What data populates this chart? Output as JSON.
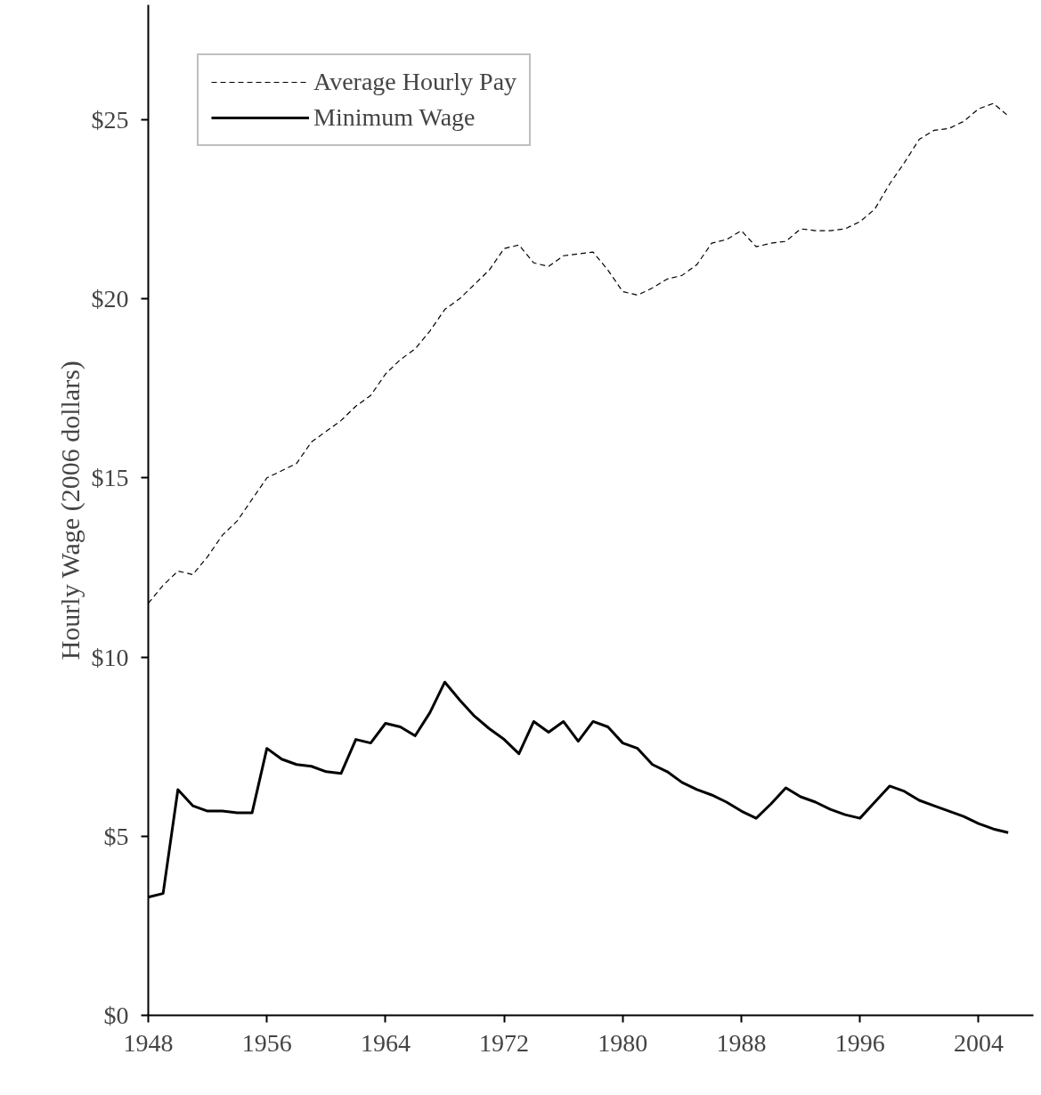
{
  "chart_data": {
    "type": "line",
    "ylabel": "Hourly Wage (2006 dollars)",
    "x": [
      1948,
      1949,
      1950,
      1951,
      1952,
      1953,
      1954,
      1955,
      1956,
      1957,
      1958,
      1959,
      1960,
      1961,
      1962,
      1963,
      1964,
      1965,
      1966,
      1967,
      1968,
      1969,
      1970,
      1971,
      1972,
      1973,
      1974,
      1975,
      1976,
      1977,
      1978,
      1979,
      1980,
      1981,
      1982,
      1983,
      1984,
      1985,
      1986,
      1987,
      1988,
      1989,
      1990,
      1991,
      1992,
      1993,
      1994,
      1995,
      1996,
      1997,
      1998,
      1999,
      2000,
      2001,
      2002,
      2003,
      2004,
      2005,
      2006
    ],
    "series": [
      {
        "name": "Average Hourly Pay",
        "color": "#000000",
        "line_style": "dashed",
        "values": [
          11.5,
          12.0,
          12.4,
          12.3,
          12.8,
          13.4,
          13.8,
          14.4,
          15.0,
          15.2,
          15.4,
          16.0,
          16.3,
          16.6,
          17.0,
          17.3,
          17.9,
          18.3,
          18.6,
          19.1,
          19.7,
          20.0,
          20.4,
          20.8,
          21.4,
          21.5,
          21.0,
          20.9,
          21.2,
          21.25,
          21.3,
          20.8,
          20.2,
          20.1,
          20.3,
          20.55,
          20.65,
          20.95,
          21.55,
          21.65,
          21.9,
          21.45,
          21.55,
          21.6,
          21.95,
          21.9,
          21.9,
          21.95,
          22.15,
          22.5,
          23.2,
          23.8,
          24.45,
          24.7,
          24.75,
          24.95,
          25.3,
          25.45,
          25.1
        ]
      },
      {
        "name": "Minimum Wage",
        "color": "#000000",
        "line_style": "solid",
        "values": [
          3.3,
          3.4,
          6.3,
          5.85,
          5.7,
          5.7,
          5.65,
          5.65,
          7.45,
          7.15,
          7.0,
          6.95,
          6.8,
          6.75,
          7.7,
          7.6,
          8.15,
          8.05,
          7.8,
          8.45,
          9.3,
          8.8,
          8.35,
          8.0,
          7.7,
          7.3,
          8.2,
          7.9,
          8.2,
          7.65,
          8.2,
          8.05,
          7.6,
          7.45,
          7.0,
          6.8,
          6.5,
          6.3,
          6.15,
          5.95,
          5.7,
          5.5,
          5.9,
          6.35,
          6.1,
          5.95,
          5.75,
          5.6,
          5.5,
          5.95,
          6.4,
          6.25,
          6.0,
          5.85,
          5.7,
          5.55,
          5.35,
          5.2,
          5.1
        ]
      }
    ],
    "xlim": [
      1948,
      2007.7
    ],
    "ylim": [
      0,
      28.2
    ],
    "xticks": [
      1948,
      1956,
      1964,
      1972,
      1980,
      1988,
      1996,
      2004
    ],
    "yticks": [
      {
        "value": 0,
        "label": "$0"
      },
      {
        "value": 5,
        "label": "$5"
      },
      {
        "value": 10,
        "label": "$10"
      },
      {
        "value": 15,
        "label": "$15"
      },
      {
        "value": 20,
        "label": "$20"
      },
      {
        "value": 25,
        "label": "$25"
      }
    ],
    "grid": false,
    "legend": "top left",
    "marker": "none"
  }
}
